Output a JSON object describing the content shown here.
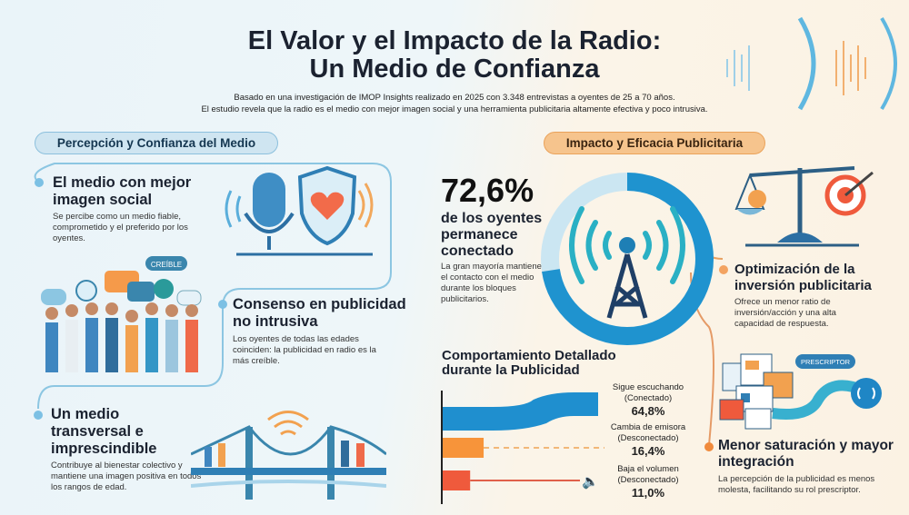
{
  "header": {
    "title_line1": "El Valor y el Impacto de la Radio:",
    "title_line2": "Un Medio de Confianza",
    "subtitle_line1": "Basado en una investigación de IMOP Insights realizado en 2025 con 3.348 entrevistas a oyentes de 25 a 70 años.",
    "subtitle_line2": "El estudio revela que la radio es el medio con mejor imagen social y una herramienta publicitaria altamente efectiva y poco intrusiva."
  },
  "left": {
    "section_label": "Percepción y Confianza del Medio",
    "items": [
      {
        "title": "El medio con mejor imagen social",
        "desc": "Se percibe como un medio fiable, comprometido y el preferido por los oyentes."
      },
      {
        "title": "Consenso en publicidad no intrusiva",
        "desc": "Los oyentes de todas las edades coinciden: la publicidad en radio es la más creíble."
      },
      {
        "title": "Un medio transversal e imprescindible",
        "desc": "Contribuye al bienestar colectivo y mantiene una imagen positiva en todos los rangos de edad."
      }
    ],
    "badge": "CREÍBLE"
  },
  "right": {
    "section_label": "Impacto y Eficacia Publicitaria",
    "stat": {
      "value": "72,6%",
      "percent": 72.6,
      "caption": "de los oyentes permanece conectado",
      "desc": "La gran mayoría mantiene el contacto con el medio durante los bloques publicitarios."
    },
    "items": [
      {
        "title": "Optimización de la inversión publicitaria",
        "desc": "Ofrece un menor ratio de inversión/acción y una alta capacidad de respuesta."
      },
      {
        "title": "Menor saturación y mayor integración",
        "desc": "La percepción de la publicidad es menos molesta, facilitando su rol prescriptor."
      }
    ],
    "badge": "PRESCRIPTOR"
  },
  "chart_data": {
    "type": "bar",
    "orientation": "horizontal",
    "title": "Comportamiento Detallado durante la Publicidad",
    "categories": [
      "Sigue escuchando (Conectado)",
      "Cambia de emisora (Desconectado)",
      "Baja el volumen (Desconectado)"
    ],
    "labels": [
      [
        "Sigue escuchando",
        "(Conectado)"
      ],
      [
        "Cambia de emisora",
        "(Desconectado)"
      ],
      [
        "Baja el volumen",
        "(Desconectado)"
      ]
    ],
    "values": [
      64.8,
      16.4,
      11.0
    ],
    "value_labels": [
      "64,8%",
      "16,4%",
      "11,0%"
    ],
    "colors": [
      "#1f8fcf",
      "#f7943a",
      "#ef5a3c"
    ]
  },
  "colors": {
    "blue": "#2a9fd6",
    "orange": "#f08a3c"
  }
}
